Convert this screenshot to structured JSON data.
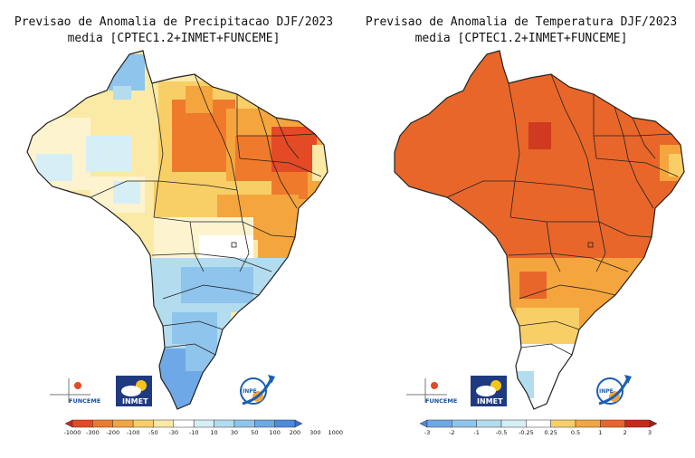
{
  "maps": [
    {
      "id": "precipitation",
      "title_line1": "Previsao de Anomalia de Precipitacao DJF/2023",
      "title_line2": "media [CPTEC1.2+INMET+FUNCEME]",
      "colorbar": {
        "ticks": [
          "-1000",
          "-300",
          "-200",
          "-100",
          "-50",
          "-30",
          "-10",
          "10",
          "30",
          "50",
          "100",
          "200",
          "300",
          "1000"
        ],
        "colors": [
          "#c8281e",
          "#e34a25",
          "#f07a2c",
          "#f5a53d",
          "#f8cf66",
          "#fbe9a6",
          "#ffffff",
          "#d6eef6",
          "#b3dcef",
          "#8fc4ec",
          "#6fa8e6",
          "#4d8ae0",
          "#3870d8"
        ]
      }
    },
    {
      "id": "temperature",
      "title_line1": "Previsao de Anomalia de Temperatura DJF/2023",
      "title_line2": "media [CPTEC1.2+INMET+FUNCEME]",
      "colorbar": {
        "ticks": [
          "-3",
          "-2",
          "-1",
          "-0.5",
          "-0.25",
          "0.25",
          "0.5",
          "1",
          "2",
          "3"
        ],
        "colors": [
          "#4d8ae0",
          "#6fa8e6",
          "#8fc4ec",
          "#b3dcef",
          "#d6eef6",
          "#ffffff",
          "#f8cf66",
          "#f5a53d",
          "#e8662a",
          "#c8281e",
          "#a81e16"
        ]
      }
    }
  ],
  "logos": {
    "funceme": "FUNCEME",
    "inmet": "INMET",
    "inpe": "INPE"
  },
  "palette": {
    "temp_main": "#e8662a",
    "temp_dark": "#cf3a20",
    "temp_light": "#f5a53d",
    "temp_yellow": "#f8cf66",
    "border": "#222222"
  }
}
